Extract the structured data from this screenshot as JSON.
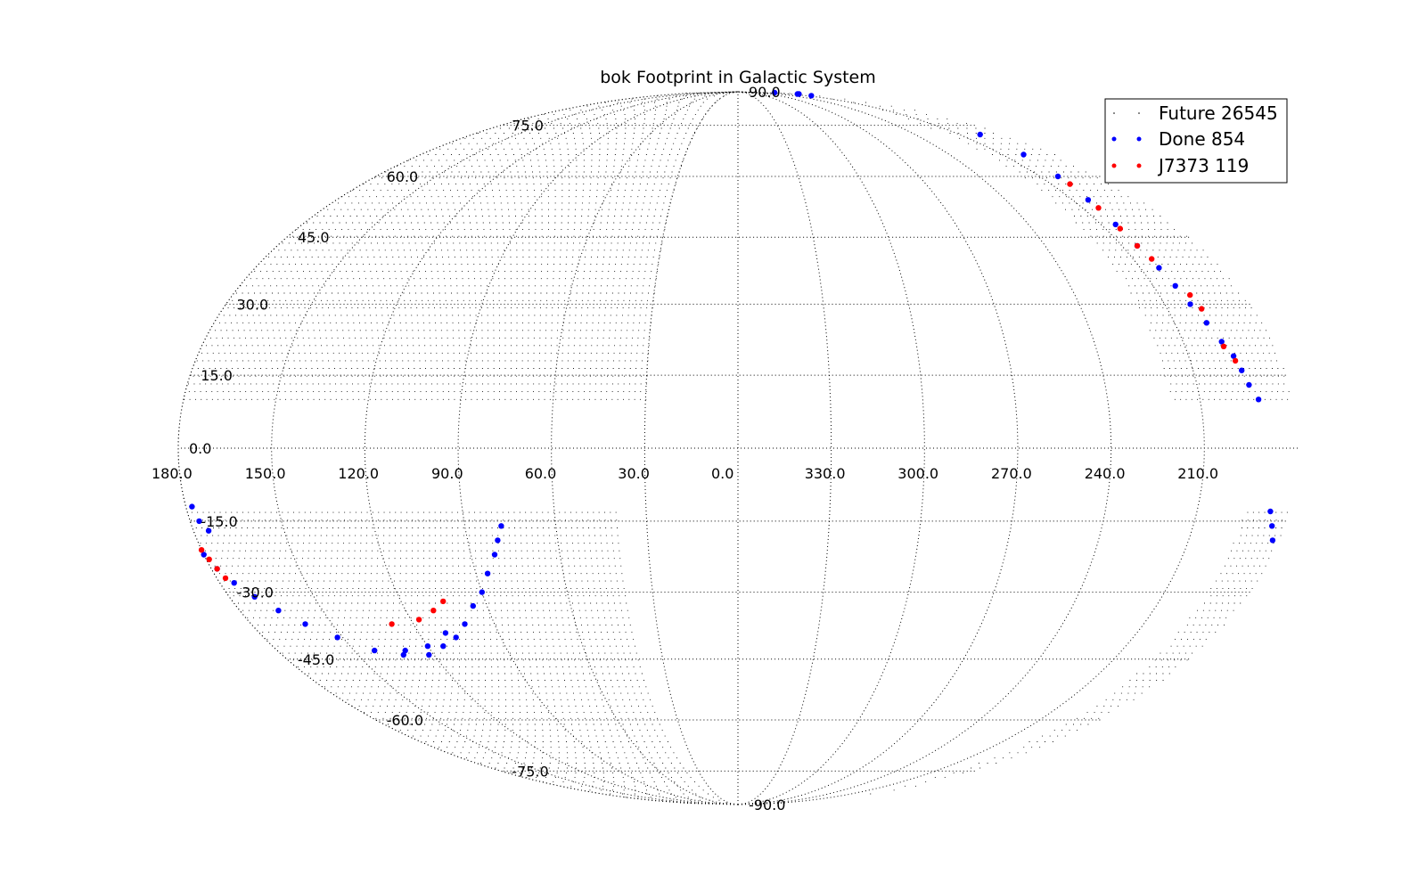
{
  "chart_data": {
    "type": "scatter",
    "projection": "mollweide",
    "title": "bok  Footprint in Galactic System",
    "xlabel": "",
    "ylabel": "",
    "grid": true,
    "legend_position": "top-right",
    "lon_ticks": [
      "330.0",
      "300.0",
      "270.0",
      "240.0",
      "210.0",
      "180.0",
      "150.0",
      "120.0",
      "90.0",
      "60.0",
      "30.0",
      "0.0"
    ],
    "lat_ticks": [
      "90.0",
      "75.0",
      "60.0",
      "45.0",
      "30.0",
      "15.0",
      "0.0",
      "-15.0",
      "-30.0",
      "-45.0",
      "-60.0",
      "-75.0",
      "-90.0"
    ],
    "series": [
      {
        "name": "Future 26545",
        "color": "#000000",
        "marker": "point",
        "regions": [
          {
            "hemisphere": "north",
            "lon_range": [
              30,
              220
            ],
            "lat_range": [
              10,
              90
            ]
          },
          {
            "hemisphere": "south",
            "lon_range": [
              40,
              195
            ],
            "lat_range": [
              -90,
              -12
            ]
          }
        ]
      },
      {
        "name": "Done 854",
        "color": "#0000ff",
        "marker": "dot",
        "points": [
          [
            186,
            88
          ],
          [
            190,
            88
          ],
          [
            194,
            89
          ],
          [
            200,
            87
          ],
          [
            196,
            72
          ],
          [
            198,
            66
          ],
          [
            201,
            60
          ],
          [
            203,
            54
          ],
          [
            204,
            48
          ],
          [
            204,
            43
          ],
          [
            203,
            38
          ],
          [
            202,
            34
          ],
          [
            201,
            30
          ],
          [
            199,
            26
          ],
          [
            197,
            22
          ],
          [
            195,
            19
          ],
          [
            194,
            16
          ],
          [
            193,
            13
          ],
          [
            191,
            10
          ],
          [
            186,
            -13
          ],
          [
            184,
            -16
          ],
          [
            182,
            -19
          ],
          [
            180,
            -22
          ],
          [
            178,
            -25
          ],
          [
            175,
            -28
          ],
          [
            171,
            -31
          ],
          [
            166,
            -34
          ],
          [
            160,
            -37
          ],
          [
            152,
            -40
          ],
          [
            142,
            -43
          ],
          [
            132,
            -44
          ],
          [
            122,
            -44
          ],
          [
            114,
            -42
          ],
          [
            107,
            -40
          ],
          [
            101,
            -37
          ],
          [
            95,
            -33
          ],
          [
            90,
            -30
          ],
          [
            86,
            -26
          ],
          [
            82,
            -22
          ],
          [
            80,
            -19
          ],
          [
            78,
            -16
          ],
          [
            178,
            -12
          ],
          [
            177,
            -15
          ],
          [
            175,
            -17
          ],
          [
            130,
            -43
          ],
          [
            120,
            -42
          ],
          [
            110,
            -39
          ]
        ]
      },
      {
        "name": "J7373 119",
        "color": "#ff0000",
        "marker": "dot",
        "points": [
          [
            201,
            58
          ],
          [
            203,
            52
          ],
          [
            204,
            47
          ],
          [
            204,
            43
          ],
          [
            203,
            40
          ],
          [
            199,
            32
          ],
          [
            198,
            29
          ],
          [
            197,
            21
          ],
          [
            195,
            18
          ],
          [
            180,
            -21
          ],
          [
            179,
            -23
          ],
          [
            178,
            -25
          ],
          [
            177,
            -27
          ],
          [
            128,
            -37
          ],
          [
            117,
            -36
          ],
          [
            110,
            -34
          ],
          [
            105,
            -32
          ]
        ]
      }
    ]
  }
}
